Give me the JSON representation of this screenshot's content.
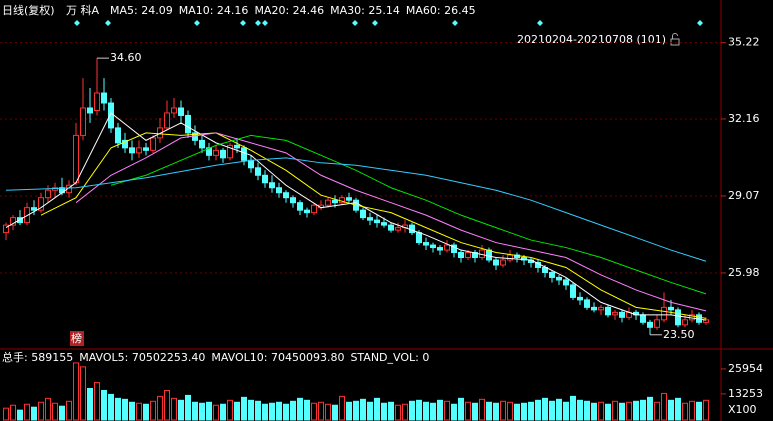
{
  "chart_data": {
    "type": "candlestick",
    "title": "日线(复权)",
    "stock_name": "万 科A",
    "date_range": "20210204-20210708 (101)",
    "badge": "榜",
    "up_color": "#ff3232",
    "down_color": "#54ffff",
    "ylim": [
      23.09,
      36.13
    ],
    "yticks": [
      25.98,
      29.07,
      32.16,
      35.22
    ],
    "ohlc": [
      [
        27.6,
        28.0,
        27.3,
        27.9
      ],
      [
        27.9,
        28.3,
        27.7,
        28.2
      ],
      [
        28.2,
        28.5,
        27.9,
        28.0
      ],
      [
        28.0,
        28.8,
        27.9,
        28.6
      ],
      [
        28.6,
        28.9,
        28.3,
        28.5
      ],
      [
        28.5,
        29.2,
        28.4,
        29.0
      ],
      [
        29.0,
        29.5,
        28.8,
        29.3
      ],
      [
        29.3,
        29.6,
        29.0,
        29.4
      ],
      [
        29.4,
        29.8,
        29.1,
        29.2
      ],
      [
        29.2,
        29.7,
        29.0,
        29.5
      ],
      [
        29.6,
        32.0,
        29.5,
        31.5
      ],
      [
        31.5,
        33.8,
        31.3,
        32.6
      ],
      [
        32.6,
        33.4,
        32.0,
        32.4
      ],
      [
        32.5,
        34.6,
        32.3,
        33.2
      ],
      [
        33.2,
        33.8,
        32.5,
        32.8
      ],
      [
        32.8,
        33.0,
        31.6,
        31.8
      ],
      [
        31.8,
        32.0,
        31.0,
        31.2
      ],
      [
        31.3,
        31.6,
        30.8,
        31.0
      ],
      [
        31.0,
        31.3,
        30.5,
        30.8
      ],
      [
        30.8,
        31.3,
        30.6,
        31.0
      ],
      [
        31.0,
        31.2,
        30.7,
        30.9
      ],
      [
        30.9,
        31.5,
        30.8,
        31.4
      ],
      [
        31.4,
        32.2,
        31.2,
        31.8
      ],
      [
        31.8,
        32.9,
        31.7,
        32.4
      ],
      [
        32.4,
        33.0,
        32.2,
        32.6
      ],
      [
        32.6,
        32.9,
        32.0,
        32.3
      ],
      [
        32.3,
        32.5,
        31.4,
        31.6
      ],
      [
        31.6,
        31.9,
        31.1,
        31.3
      ],
      [
        31.3,
        31.5,
        30.8,
        31.0
      ],
      [
        31.0,
        31.2,
        30.5,
        30.7
      ],
      [
        30.7,
        31.1,
        30.5,
        30.9
      ],
      [
        30.9,
        31.0,
        30.4,
        30.6
      ],
      [
        30.6,
        31.2,
        30.5,
        31.1
      ],
      [
        31.1,
        31.4,
        30.8,
        31.0
      ],
      [
        31.0,
        31.1,
        30.3,
        30.5
      ],
      [
        30.5,
        30.7,
        30.0,
        30.2
      ],
      [
        30.2,
        30.4,
        29.7,
        29.9
      ],
      [
        29.9,
        30.1,
        29.4,
        29.6
      ],
      [
        29.6,
        29.9,
        29.2,
        29.4
      ],
      [
        29.4,
        29.6,
        29.0,
        29.2
      ],
      [
        29.2,
        29.3,
        28.8,
        29.0
      ],
      [
        29.0,
        29.1,
        28.6,
        28.8
      ],
      [
        28.8,
        28.9,
        28.3,
        28.5
      ],
      [
        28.5,
        28.6,
        28.2,
        28.4
      ],
      [
        28.4,
        28.8,
        28.3,
        28.7
      ],
      [
        28.6,
        28.9,
        28.5,
        28.7
      ],
      [
        28.7,
        29.0,
        28.6,
        28.9
      ],
      [
        28.9,
        29.1,
        28.6,
        28.8
      ],
      [
        28.8,
        29.1,
        28.7,
        29.0
      ],
      [
        29.0,
        29.2,
        28.8,
        28.9
      ],
      [
        28.9,
        29.0,
        28.4,
        28.5
      ],
      [
        28.5,
        28.6,
        28.1,
        28.2
      ],
      [
        28.2,
        28.4,
        27.9,
        28.1
      ],
      [
        28.1,
        28.3,
        27.8,
        28.0
      ],
      [
        28.0,
        28.2,
        27.8,
        27.9
      ],
      [
        27.9,
        28.0,
        27.6,
        27.7
      ],
      [
        27.7,
        28.0,
        27.6,
        27.8
      ],
      [
        27.8,
        28.1,
        27.6,
        27.9
      ],
      [
        27.9,
        28.0,
        27.5,
        27.6
      ],
      [
        27.6,
        27.7,
        27.1,
        27.2
      ],
      [
        27.2,
        27.4,
        26.9,
        27.1
      ],
      [
        27.1,
        27.2,
        26.8,
        27.0
      ],
      [
        27.0,
        27.1,
        26.7,
        26.9
      ],
      [
        26.9,
        27.3,
        26.8,
        27.1
      ],
      [
        27.1,
        27.2,
        26.6,
        26.8
      ],
      [
        26.8,
        26.9,
        26.4,
        26.6
      ],
      [
        26.6,
        26.9,
        26.5,
        26.8
      ],
      [
        26.8,
        26.9,
        26.4,
        26.6
      ],
      [
        26.6,
        27.1,
        26.5,
        26.9
      ],
      [
        26.9,
        27.0,
        26.4,
        26.5
      ],
      [
        26.5,
        26.6,
        26.1,
        26.3
      ],
      [
        26.3,
        26.7,
        26.2,
        26.5
      ],
      [
        26.5,
        26.9,
        26.4,
        26.7
      ],
      [
        26.7,
        26.8,
        26.4,
        26.6
      ],
      [
        26.6,
        26.7,
        26.3,
        26.5
      ],
      [
        26.5,
        26.6,
        26.2,
        26.4
      ],
      [
        26.4,
        26.5,
        26.0,
        26.2
      ],
      [
        26.2,
        26.3,
        25.8,
        26.0
      ],
      [
        26.0,
        26.1,
        25.6,
        25.8
      ],
      [
        25.8,
        25.9,
        25.5,
        25.7
      ],
      [
        25.7,
        25.8,
        25.3,
        25.5
      ],
      [
        25.5,
        25.6,
        24.9,
        25.0
      ],
      [
        25.0,
        25.2,
        24.7,
        24.9
      ],
      [
        24.9,
        25.0,
        24.5,
        24.6
      ],
      [
        24.6,
        24.8,
        24.4,
        24.5
      ],
      [
        24.5,
        24.7,
        24.3,
        24.6
      ],
      [
        24.6,
        24.7,
        24.2,
        24.3
      ],
      [
        24.3,
        24.5,
        24.1,
        24.4
      ],
      [
        24.4,
        24.5,
        24.0,
        24.2
      ],
      [
        24.2,
        24.6,
        24.1,
        24.4
      ],
      [
        24.4,
        24.5,
        24.1,
        24.3
      ],
      [
        24.3,
        24.4,
        23.9,
        24.0
      ],
      [
        24.0,
        24.1,
        23.5,
        23.8
      ],
      [
        23.8,
        24.3,
        23.7,
        24.1
      ],
      [
        24.1,
        25.2,
        24.0,
        24.6
      ],
      [
        24.6,
        24.9,
        24.3,
        24.5
      ],
      [
        24.5,
        24.6,
        23.8,
        23.9
      ],
      [
        23.9,
        24.3,
        23.8,
        24.1
      ],
      [
        24.1,
        24.5,
        24.0,
        24.3
      ],
      [
        24.3,
        24.4,
        23.9,
        24.0
      ],
      [
        24.0,
        24.2,
        23.9,
        24.1
      ]
    ],
    "series": [
      {
        "name": "MA5: 24.09",
        "color": "#ffffff",
        "x": [
          0,
          5,
          10,
          15,
          20,
          25,
          30,
          35,
          40,
          45,
          50,
          55,
          60,
          65,
          70,
          75,
          80,
          85,
          90,
          95,
          100
        ],
        "values": [
          27.8,
          28.6,
          29.6,
          32.4,
          31.3,
          32.0,
          31.2,
          30.7,
          29.5,
          28.6,
          28.8,
          28.0,
          27.5,
          26.9,
          26.6,
          26.5,
          25.8,
          24.8,
          24.3,
          24.3,
          24.09
        ]
      },
      {
        "name": "MA10: 24.16",
        "color": "#ffff00",
        "x": [
          5,
          10,
          15,
          20,
          25,
          30,
          35,
          40,
          45,
          50,
          55,
          60,
          65,
          70,
          75,
          80,
          85,
          90,
          95,
          100
        ],
        "values": [
          28.3,
          29.0,
          31.0,
          31.6,
          31.5,
          31.6,
          30.9,
          30.1,
          29.1,
          28.7,
          28.4,
          27.8,
          27.2,
          26.8,
          26.6,
          26.2,
          25.3,
          24.6,
          24.4,
          24.16
        ]
      },
      {
        "name": "MA20: 24.46",
        "color": "#ff80ff",
        "x": [
          10,
          15,
          20,
          25,
          30,
          35,
          40,
          45,
          50,
          55,
          60,
          65,
          70,
          75,
          80,
          85,
          90,
          95,
          100
        ],
        "values": [
          28.8,
          29.9,
          30.6,
          31.4,
          31.6,
          31.2,
          30.8,
          29.9,
          29.3,
          28.8,
          28.3,
          27.7,
          27.2,
          26.9,
          26.6,
          25.9,
          25.3,
          24.8,
          24.46
        ]
      },
      {
        "name": "MA30: 25.14",
        "color": "#00e600",
        "x": [
          15,
          20,
          25,
          30,
          35,
          40,
          45,
          50,
          55,
          60,
          65,
          70,
          75,
          80,
          85,
          90,
          95,
          100
        ],
        "values": [
          29.5,
          29.9,
          30.5,
          31.1,
          31.5,
          31.3,
          30.7,
          30.1,
          29.4,
          28.9,
          28.3,
          27.8,
          27.3,
          27.0,
          26.6,
          26.1,
          25.6,
          25.14
        ]
      },
      {
        "name": "MA60: 26.45",
        "color": "#33ccff",
        "x": [
          0,
          10,
          20,
          30,
          35,
          40,
          45,
          50,
          55,
          60,
          65,
          70,
          75,
          80,
          85,
          90,
          95,
          100
        ],
        "values": [
          29.3,
          29.4,
          29.8,
          30.3,
          30.5,
          30.6,
          30.4,
          30.3,
          30.1,
          29.9,
          29.6,
          29.3,
          28.9,
          28.4,
          27.9,
          27.4,
          26.9,
          26.45
        ]
      }
    ],
    "annotations": [
      {
        "text": "34.60",
        "index": 13,
        "value": 34.6
      },
      {
        "text": "23.50",
        "index": 92,
        "value": 23.5
      }
    ],
    "volume": {
      "header": [
        {
          "text": "总手: 589155",
          "color": "#33ccff"
        },
        {
          "text": "MAVOL5: 70502253.40",
          "color": "#ffff00"
        },
        {
          "text": "MAVOL10: 70450093.80",
          "color": "#ffffff"
        },
        {
          "text": "STAND_VOL: 0",
          "color": "#ffff00"
        }
      ],
      "unit": "X100",
      "ylim": [
        0,
        30480
      ],
      "yticks": [
        25954,
        13253
      ],
      "values": [
        6000,
        7500,
        5000,
        8000,
        6500,
        9000,
        11000,
        8500,
        7000,
        9500,
        29000,
        27000,
        16000,
        19000,
        15000,
        13000,
        11000,
        10500,
        9000,
        8500,
        8000,
        9500,
        12000,
        15000,
        11000,
        10000,
        12500,
        9000,
        8500,
        9000,
        7500,
        8000,
        10000,
        9000,
        11500,
        10000,
        9500,
        8000,
        8500,
        9000,
        8000,
        9500,
        11000,
        10000,
        8500,
        9000,
        8000,
        7500,
        12000,
        9000,
        9500,
        10500,
        9000,
        11000,
        8500,
        9000,
        7500,
        8000,
        9500,
        10000,
        9000,
        8500,
        10000,
        9500,
        8000,
        11000,
        9000,
        8500,
        10500,
        9000,
        8500,
        9500,
        9000,
        8000,
        8500,
        9000,
        10000,
        11000,
        9500,
        10500,
        9000,
        12000,
        10000,
        9500,
        8500,
        9000,
        8000,
        9500,
        8500,
        9000,
        9500,
        10000,
        11500,
        9000,
        13500,
        10000,
        11000,
        8500,
        9500,
        9000,
        10000
      ]
    }
  }
}
